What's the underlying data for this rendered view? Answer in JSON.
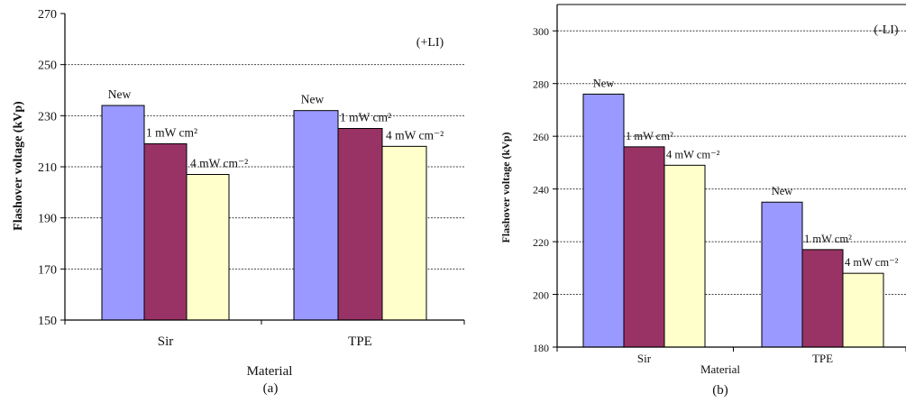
{
  "chart_data": [
    {
      "type": "bar",
      "caption": "(a)",
      "corner_label": "(+LI)",
      "xlabel": "Material",
      "ylabel": "Flashover voltage (kVp)",
      "categories": [
        "Sir",
        "TPE"
      ],
      "series": [
        {
          "name": "New",
          "values": [
            234,
            232
          ],
          "color": "#9999ff"
        },
        {
          "name": "1 mW cm²",
          "values": [
            219,
            225
          ],
          "color": "#993366"
        },
        {
          "name": "4 mW cm⁻²",
          "values": [
            207,
            218
          ],
          "color": "#ffffcc"
        }
      ],
      "ylim": [
        150,
        270
      ],
      "yticks": [
        150,
        170,
        190,
        210,
        230,
        250,
        270
      ],
      "grid": true
    },
    {
      "type": "bar",
      "caption": "(b)",
      "corner_label": "(-LI)",
      "xlabel": "Material",
      "ylabel": "Flashover voltage (kVp)",
      "categories": [
        "Sir",
        "TPE"
      ],
      "series": [
        {
          "name": "New",
          "values": [
            276,
            235
          ],
          "color": "#9999ff"
        },
        {
          "name": "1 mW cm²",
          "values": [
            256,
            217
          ],
          "color": "#993366"
        },
        {
          "name": "4 mW cm⁻²",
          "values": [
            249,
            208
          ],
          "color": "#ffffcc"
        }
      ],
      "ylim": [
        180,
        310
      ],
      "yticks": [
        180,
        200,
        220,
        240,
        260,
        280,
        300
      ],
      "grid": true
    }
  ]
}
